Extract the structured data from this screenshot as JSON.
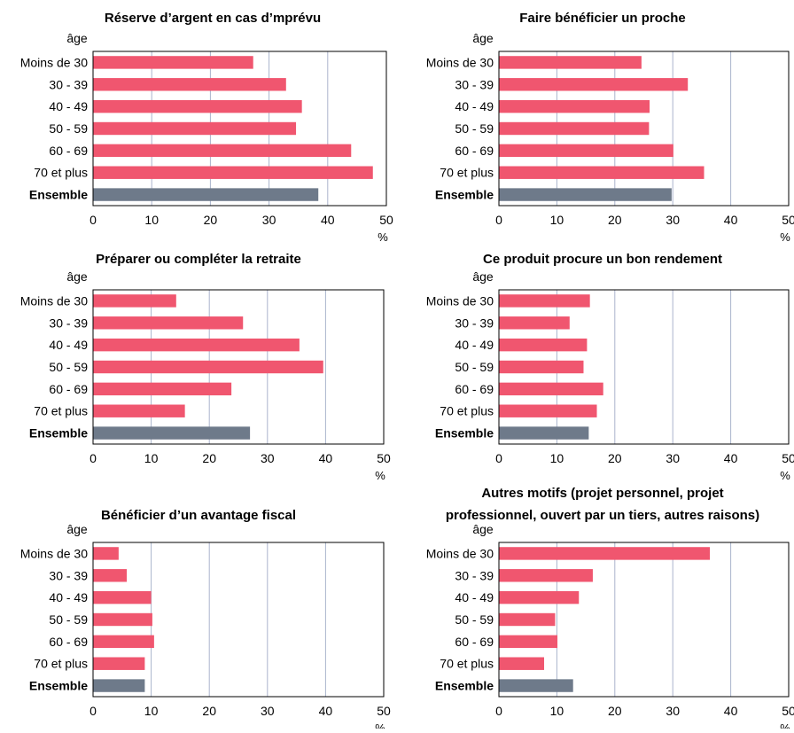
{
  "colors": {
    "bar": "#f0566f",
    "ensemble_bar": "#6e7a8a",
    "grid": "#aab4cc",
    "frame": "#000000",
    "text": "#000000"
  },
  "chart_data": [
    {
      "type": "bar",
      "orientation": "horizontal",
      "title": "Réserve d’argent en cas d’mprévu",
      "ylabel": "âge",
      "xlabel": "%",
      "categories": [
        "Moins de 30",
        "30 - 39",
        "40 - 49",
        "50 - 59",
        "60 - 69",
        "70 et plus",
        "Ensemble"
      ],
      "values": [
        27.3,
        32.9,
        35.6,
        34.6,
        44.0,
        47.7,
        38.4
      ],
      "xlim": [
        0,
        50
      ],
      "xticks": [
        "0",
        "10",
        "20",
        "30",
        "40",
        "50"
      ],
      "grid": true,
      "legend": "none"
    },
    {
      "type": "bar",
      "orientation": "horizontal",
      "title": "Faire bénéficier un proche",
      "ylabel": "âge",
      "xlabel": "%",
      "categories": [
        "Moins de 30",
        "30 - 39",
        "40 - 49",
        "50 - 59",
        "60 - 69",
        "70 et plus",
        "Ensemble"
      ],
      "values": [
        24.6,
        32.6,
        26.0,
        25.9,
        30.1,
        35.4,
        29.8
      ],
      "xlim": [
        0,
        50
      ],
      "xticks": [
        "0",
        "10",
        "20",
        "30",
        "40",
        "50"
      ],
      "grid": true,
      "legend": "none"
    },
    {
      "type": "bar",
      "orientation": "horizontal",
      "title": "Préparer ou compléter la retraite",
      "ylabel": "âge",
      "xlabel": "%",
      "categories": [
        "Moins de 30",
        "30 - 39",
        "40 - 49",
        "50 - 59",
        "60 - 69",
        "70 et plus",
        "Ensemble"
      ],
      "values": [
        14.3,
        25.8,
        35.5,
        39.6,
        23.8,
        15.8,
        27.0
      ],
      "xlim": [
        0,
        50
      ],
      "xticks": [
        "0",
        "10",
        "20",
        "30",
        "40",
        "50"
      ],
      "grid": true,
      "legend": "none"
    },
    {
      "type": "bar",
      "orientation": "horizontal",
      "title": "Ce produit procure un bon rendement",
      "ylabel": "âge",
      "xlabel": "%",
      "categories": [
        "Moins de 30",
        "30 - 39",
        "40 - 49",
        "50 - 59",
        "60 - 69",
        "70 et plus",
        "Ensemble"
      ],
      "values": [
        15.7,
        12.2,
        15.2,
        14.6,
        18.0,
        16.9,
        15.5
      ],
      "xlim": [
        0,
        50
      ],
      "xticks": [
        "0",
        "10",
        "20",
        "30",
        "40",
        "50"
      ],
      "grid": true,
      "legend": "none"
    },
    {
      "type": "bar",
      "orientation": "horizontal",
      "title": "Bénéficier d’un avantage fiscal",
      "ylabel": "âge",
      "xlabel": "%",
      "categories": [
        "Moins de 30",
        "30 - 39",
        "40 - 49",
        "50 - 59",
        "60 - 69",
        "70 et plus",
        "Ensemble"
      ],
      "values": [
        4.4,
        5.8,
        10.0,
        10.2,
        10.5,
        8.9,
        8.9
      ],
      "xlim": [
        0,
        50
      ],
      "xticks": [
        "0",
        "10",
        "20",
        "30",
        "40",
        "50"
      ],
      "grid": true,
      "legend": "none"
    },
    {
      "type": "bar",
      "orientation": "horizontal",
      "title": "Autres motifs (projet personnel, projet professionnel, ouvert par un tiers, autres raisons)",
      "title_lines": [
        "Autres motifs (projet personnel, projet",
        "professionnel, ouvert par un tiers, autres raisons)"
      ],
      "ylabel": "âge",
      "xlabel": "%",
      "categories": [
        "Moins de 30",
        "30 - 39",
        "40 - 49",
        "50 - 59",
        "60 - 69",
        "70 et plus",
        "Ensemble"
      ],
      "values": [
        36.4,
        16.2,
        13.8,
        9.7,
        10.1,
        7.8,
        12.8
      ],
      "xlim": [
        0,
        50
      ],
      "xticks": [
        "0",
        "10",
        "20",
        "30",
        "40",
        "50"
      ],
      "grid": true,
      "legend": "none"
    }
  ]
}
